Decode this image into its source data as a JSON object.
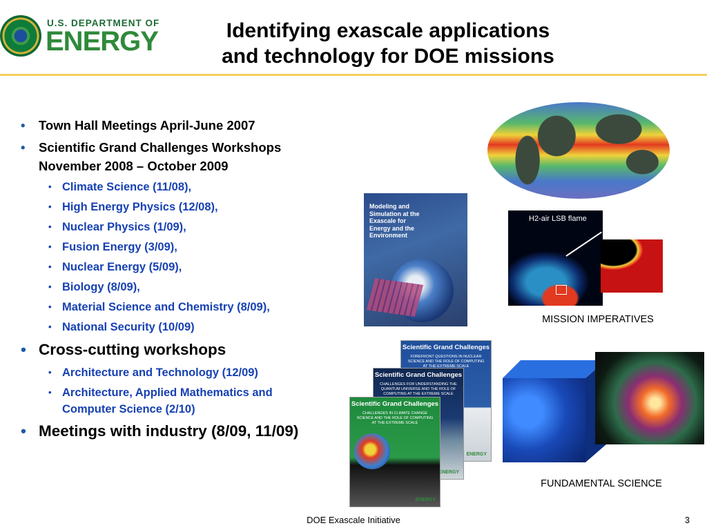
{
  "header": {
    "logo": {
      "dept": "U.S. DEPARTMENT OF",
      "name": "ENERGY"
    },
    "title_line1": "Identifying exascale applications",
    "title_line2": "and technology for DOE missions"
  },
  "bullets": {
    "item1": "Town Hall Meetings April-June 2007",
    "item2_line1": "Scientific Grand Challenges Workshops",
    "item2_line2": "November 2008 – October 2009",
    "workshops": [
      "Climate Science (11/08),",
      "High Energy Physics (12/08),",
      "Nuclear Physics (1/09),",
      "Fusion Energy (3/09),",
      "Nuclear Energy (5/09),",
      "Biology (8/09),",
      "Material Science and Chemistry (8/09),",
      "National Security (10/09)"
    ],
    "item3": "Cross-cutting workshops",
    "cross_cutting": [
      "Architecture and Technology (12/09)",
      "Architecture, Applied Mathematics and"
    ],
    "cross_cutting_cont": "Computer Science (2/10)",
    "item4": "Meetings with industry (8/09, 11/09)"
  },
  "images": {
    "report_title": "Modeling and Simulation at the Exascale for Energy and the Environment",
    "flame_label": "H2-air LSB flame",
    "sgc_header": "Scientific Grand Challenges",
    "sgc_back_sub": "FOREFRONT QUESTIONS IN NUCLEAR SCIENCE AND THE ROLE OF COMPUTING AT THE EXTREME SCALE",
    "sgc_mid_sub": "CHALLENGES FOR UNDERSTANDING THE QUANTUM UNIVERSE AND THE ROLE OF COMPUTING AT THE EXTREME SCALE",
    "sgc_front_sub": "CHALLENGES IN CLIMATE CHANGE SCIENCE AND THE ROLE OF COMPUTING AT THE EXTREME SCALE",
    "mini_logo": "ENERGY"
  },
  "captions": {
    "mission": "MISSION IMPERATIVES",
    "fundamental": "FUNDAMENTAL SCIENCE"
  },
  "footer": {
    "text": "DOE Exascale Initiative",
    "page": "3"
  },
  "colors": {
    "accent_rule": "#f3d15a",
    "sub_bullet": "#1741b3",
    "logo_green": "#2f8a3a"
  }
}
